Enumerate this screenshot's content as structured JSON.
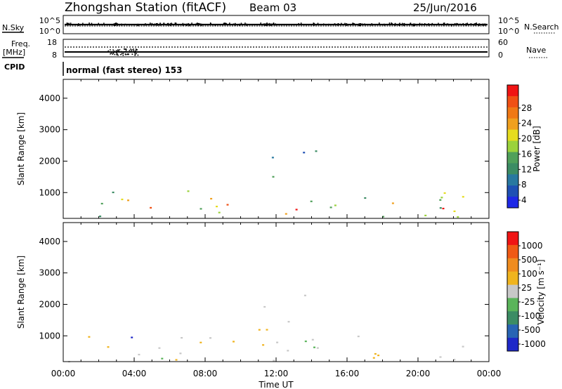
{
  "header": {
    "station": "Zhongshan Station (fitACF)",
    "beam": "Beam 03",
    "date": "25/Jun/2016"
  },
  "summary": {
    "nsky_label": "N.Sky",
    "nsearch_label": "N.Search",
    "noise_ticks": [
      "10^5",
      "10^0"
    ],
    "freq_label_1": "Freq.",
    "freq_label_2": "[MHz]",
    "freq_ticks": [
      "18",
      "8"
    ],
    "nave_ticks": [
      "60",
      "0"
    ],
    "nave_label": "Nave",
    "cpid_label": "CPID",
    "cpid_text": "normal (fast stereo) 153"
  },
  "power_panel": {
    "ylabel": "Slant Range [km]",
    "colorbar_label": "Power [dB]",
    "colorbar_ticks": [
      "28",
      "24",
      "20",
      "16",
      "12",
      "8",
      "4"
    ],
    "colors": [
      "#1e28e6",
      "#1e50b4",
      "#2878a0",
      "#3c8c64",
      "#50a05a",
      "#9bd23c",
      "#e6dc1e",
      "#f0a01e",
      "#f07814",
      "#f05014",
      "#f01414"
    ]
  },
  "velocity_panel": {
    "ylabel": "Slant Range [km]",
    "colorbar_label": "Velocity [m s⁻¹]",
    "colorbar_ticks": [
      "1000",
      "500",
      "100",
      "25",
      "-25",
      "-100",
      "-500",
      "-1000"
    ],
    "colors": [
      "#1e28c8",
      "#2864b4",
      "#3c8c64",
      "#5ab45a",
      "#c8c8c8",
      "#f0b41e",
      "#f08c1e",
      "#f05a14",
      "#f01414"
    ]
  },
  "axis": {
    "xlabel": "Time UT",
    "xticks": [
      "00:00",
      "04:00",
      "08:00",
      "12:00",
      "16:00",
      "20:00",
      "00:00"
    ],
    "yticks": [
      "1000",
      "2000",
      "3000",
      "4000"
    ]
  },
  "chart_data": [
    {
      "type": "heatmap",
      "title": "Power [dB]",
      "xlabel": "Time UT",
      "ylabel": "Slant Range [km]",
      "xlim": [
        0,
        24
      ],
      "ylim": [
        180,
        4600
      ],
      "clim": [
        0,
        30
      ],
      "echo_regions": [
        {
          "t0": 0.0,
          "t1": 24.0,
          "r0": 200,
          "r1": 1100,
          "power": 14
        },
        {
          "t0": 2.5,
          "t1": 5.5,
          "r0": 350,
          "r1": 1000,
          "power": 22
        },
        {
          "t0": 7.0,
          "t1": 10.0,
          "r0": 400,
          "r1": 800,
          "power": 20
        },
        {
          "t0": 11.0,
          "t1": 14.5,
          "r0": 1500,
          "r1": 2500,
          "power": 6
        },
        {
          "t0": 12.0,
          "t1": 13.5,
          "r0": 300,
          "r1": 650,
          "power": 26
        },
        {
          "t0": 20.0,
          "t1": 22.0,
          "r0": 250,
          "r1": 600,
          "power": 26
        }
      ]
    },
    {
      "type": "heatmap",
      "title": "Velocity [m s⁻¹]",
      "xlabel": "Time UT",
      "ylabel": "Slant Range [km]",
      "xlim": [
        0,
        24
      ],
      "ylim": [
        180,
        4600
      ],
      "clim": [
        -1000,
        1000
      ],
      "echo_regions": [
        {
          "t0": 0.0,
          "t1": 24.0,
          "r0": 200,
          "r1": 1100,
          "velocity": 50
        },
        {
          "t0": 2.5,
          "t1": 4.5,
          "r0": 600,
          "r1": 1100,
          "velocity": 700
        },
        {
          "t0": 4.5,
          "t1": 8.0,
          "r0": 250,
          "r1": 600,
          "velocity": -200
        },
        {
          "t0": 11.0,
          "t1": 14.5,
          "r0": 1200,
          "r1": 2500,
          "velocity": 0
        },
        {
          "t0": 15.5,
          "t1": 18.5,
          "r0": 300,
          "r1": 900,
          "velocity": -150
        }
      ]
    }
  ]
}
